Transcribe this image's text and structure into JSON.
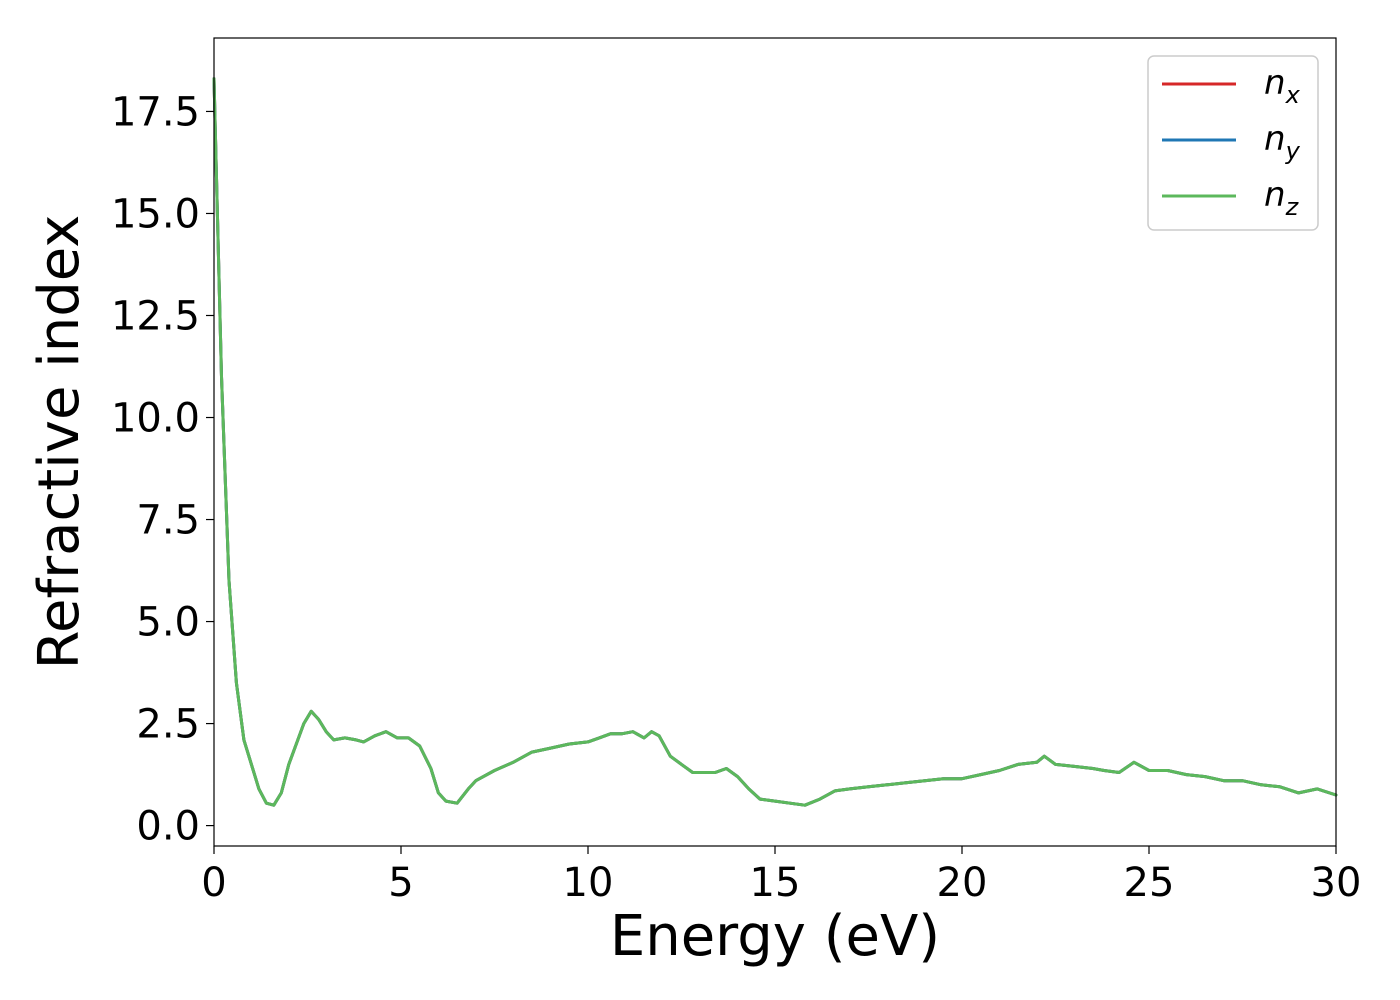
{
  "chart_data": {
    "type": "line",
    "title": "",
    "xlabel": "Energy (eV)",
    "ylabel": "Refractive index",
    "xlim": [
      0,
      30
    ],
    "ylim": [
      -0.5,
      19.3
    ],
    "xticks": [
      0,
      5,
      10,
      15,
      20,
      25,
      30
    ],
    "xtick_labels": [
      "0",
      "5",
      "10",
      "15",
      "20",
      "25",
      "30"
    ],
    "yticks": [
      0,
      2.5,
      5,
      7.5,
      10,
      12.5,
      15,
      17.5
    ],
    "ytick_labels": [
      "0.0",
      "2.5",
      "5.0",
      "7.5",
      "10.0",
      "12.5",
      "15.0",
      "17.5"
    ],
    "grid": false,
    "legend_position": "top-right",
    "x": [
      0,
      0.2,
      0.4,
      0.6,
      0.8,
      1.0,
      1.2,
      1.4,
      1.6,
      1.8,
      2.0,
      2.2,
      2.4,
      2.6,
      2.8,
      3.0,
      3.2,
      3.5,
      3.8,
      4.0,
      4.3,
      4.6,
      4.9,
      5.2,
      5.5,
      5.8,
      6.0,
      6.2,
      6.5,
      6.8,
      7.0,
      7.5,
      8.0,
      8.5,
      9.0,
      9.5,
      10.0,
      10.3,
      10.6,
      10.9,
      11.2,
      11.5,
      11.7,
      11.9,
      12.2,
      12.5,
      12.8,
      13.1,
      13.4,
      13.7,
      14.0,
      14.3,
      14.6,
      15.0,
      15.4,
      15.8,
      16.2,
      16.6,
      17.0,
      17.5,
      18.0,
      18.5,
      19.0,
      19.5,
      20.0,
      20.5,
      21.0,
      21.5,
      22.0,
      22.2,
      22.5,
      23.0,
      23.5,
      23.8,
      24.2,
      24.6,
      25.0,
      25.5,
      26.0,
      26.5,
      27.0,
      27.5,
      28.0,
      28.5,
      29.0,
      29.5,
      30.0
    ],
    "series": [
      {
        "name": "n_x",
        "color": "#d62728",
        "values": [
          18.3,
          11.0,
          6.0,
          3.5,
          2.1,
          1.5,
          0.9,
          0.55,
          0.5,
          0.8,
          1.5,
          2.0,
          2.5,
          2.8,
          2.6,
          2.3,
          2.1,
          2.15,
          2.1,
          2.05,
          2.2,
          2.3,
          2.15,
          2.15,
          1.95,
          1.4,
          0.8,
          0.6,
          0.55,
          0.9,
          1.1,
          1.35,
          1.55,
          1.8,
          1.9,
          2.0,
          2.05,
          2.15,
          2.25,
          2.25,
          2.3,
          2.15,
          2.3,
          2.2,
          1.7,
          1.5,
          1.3,
          1.3,
          1.3,
          1.4,
          1.2,
          0.9,
          0.65,
          0.6,
          0.55,
          0.5,
          0.65,
          0.85,
          0.9,
          0.95,
          1.0,
          1.05,
          1.1,
          1.15,
          1.15,
          1.25,
          1.35,
          1.5,
          1.55,
          1.7,
          1.5,
          1.45,
          1.4,
          1.35,
          1.3,
          1.55,
          1.35,
          1.35,
          1.25,
          1.2,
          1.1,
          1.1,
          1.0,
          0.95,
          0.8,
          0.9,
          0.75
        ]
      },
      {
        "name": "n_y",
        "color": "#1f77b4",
        "values": [
          18.3,
          11.0,
          6.0,
          3.5,
          2.1,
          1.5,
          0.9,
          0.55,
          0.5,
          0.8,
          1.5,
          2.0,
          2.5,
          2.8,
          2.6,
          2.3,
          2.1,
          2.15,
          2.1,
          2.05,
          2.2,
          2.3,
          2.15,
          2.15,
          1.95,
          1.4,
          0.8,
          0.6,
          0.55,
          0.9,
          1.1,
          1.35,
          1.55,
          1.8,
          1.9,
          2.0,
          2.05,
          2.15,
          2.25,
          2.25,
          2.3,
          2.15,
          2.3,
          2.2,
          1.7,
          1.5,
          1.3,
          1.3,
          1.3,
          1.4,
          1.2,
          0.9,
          0.65,
          0.6,
          0.55,
          0.5,
          0.65,
          0.85,
          0.9,
          0.95,
          1.0,
          1.05,
          1.1,
          1.15,
          1.15,
          1.25,
          1.35,
          1.5,
          1.55,
          1.7,
          1.5,
          1.45,
          1.4,
          1.35,
          1.3,
          1.55,
          1.35,
          1.35,
          1.25,
          1.2,
          1.1,
          1.1,
          1.0,
          0.95,
          0.8,
          0.9,
          0.75
        ]
      },
      {
        "name": "n_z",
        "color": "#5cb85c",
        "values": [
          18.3,
          11.0,
          6.0,
          3.5,
          2.1,
          1.5,
          0.9,
          0.55,
          0.5,
          0.8,
          1.5,
          2.0,
          2.5,
          2.8,
          2.6,
          2.3,
          2.1,
          2.15,
          2.1,
          2.05,
          2.2,
          2.3,
          2.15,
          2.15,
          1.95,
          1.4,
          0.8,
          0.6,
          0.55,
          0.9,
          1.1,
          1.35,
          1.55,
          1.8,
          1.9,
          2.0,
          2.05,
          2.15,
          2.25,
          2.25,
          2.3,
          2.15,
          2.3,
          2.2,
          1.7,
          1.5,
          1.3,
          1.3,
          1.3,
          1.4,
          1.2,
          0.9,
          0.65,
          0.6,
          0.55,
          0.5,
          0.65,
          0.85,
          0.9,
          0.95,
          1.0,
          1.05,
          1.1,
          1.15,
          1.15,
          1.25,
          1.35,
          1.5,
          1.55,
          1.7,
          1.5,
          1.45,
          1.4,
          1.35,
          1.3,
          1.55,
          1.35,
          1.35,
          1.25,
          1.2,
          1.1,
          1.1,
          1.0,
          0.95,
          0.8,
          0.9,
          0.75
        ]
      }
    ]
  },
  "legend": {
    "items": [
      {
        "base": "n",
        "sub": "x",
        "color": "#d62728"
      },
      {
        "base": "n",
        "sub": "y",
        "color": "#1f77b4"
      },
      {
        "base": "n",
        "sub": "z",
        "color": "#5cb85c"
      }
    ]
  }
}
